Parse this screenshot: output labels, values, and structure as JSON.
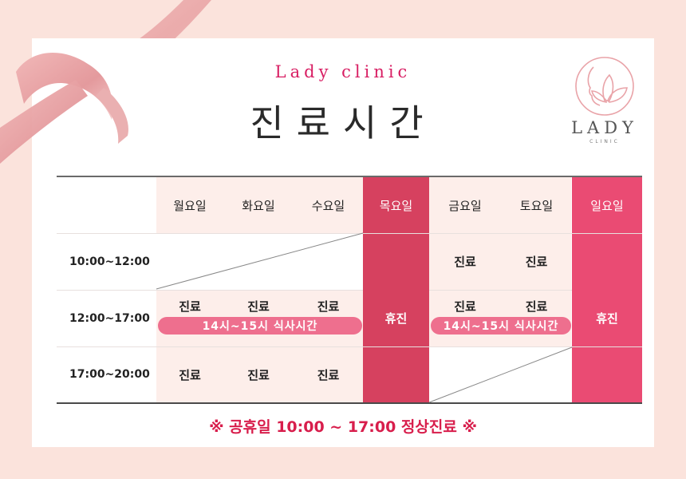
{
  "header": {
    "subtitle": "Lady clinic",
    "title": "진료시간"
  },
  "logo": {
    "icon": "lotus-face-logo-icon",
    "text": "LADY",
    "sub": "CLINIC"
  },
  "schedule": {
    "days": [
      "월요일",
      "화요일",
      "수요일",
      "목요일",
      "금요일",
      "토요일",
      "일요일"
    ],
    "times": [
      "10:00~12:00",
      "12:00~17:00",
      "17:00~20:00"
    ],
    "open_label": "진료",
    "closed_label": "휴진",
    "lunch_label": "14시~15시 식사시간"
  },
  "notice": "※ 공휴일 10:00 ~ 17:00 정상진료 ※",
  "colors": {
    "accent": "#d81e63",
    "thursday": "#d6415f",
    "sunday": "#ea4b73",
    "pill": "#ee6f8e",
    "cell_bg": "#fdeeea"
  }
}
